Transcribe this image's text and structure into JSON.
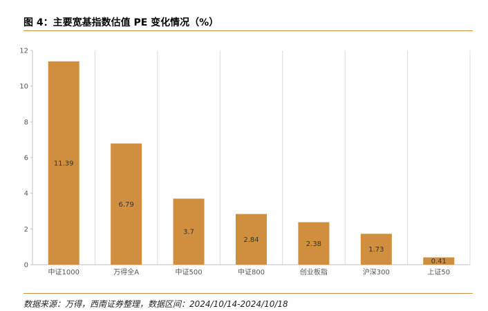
{
  "colors": {
    "bar": "#d08f3f",
    "grid": "#d9d9d9",
    "rule": "#c8913f"
  },
  "figure": {
    "title": "图 4：主要宽基指数估值 PE 变化情况（%）",
    "source": "数据来源：万得，西南证券整理，数据区间：2024/10/14-2024/10/18"
  },
  "chart_data": {
    "type": "bar",
    "title": "",
    "xlabel": "",
    "ylabel": "",
    "categories": [
      "中证1000",
      "万得全A",
      "中证500",
      "中证800",
      "创业板指",
      "沪深300",
      "上证50"
    ],
    "values": [
      11.39,
      6.79,
      3.7,
      2.84,
      2.38,
      1.73,
      0.41
    ],
    "ylim": [
      0,
      12
    ],
    "yticks": [
      0,
      2,
      4,
      6,
      8,
      10,
      12
    ],
    "grid": "vertical",
    "legend": "none"
  }
}
